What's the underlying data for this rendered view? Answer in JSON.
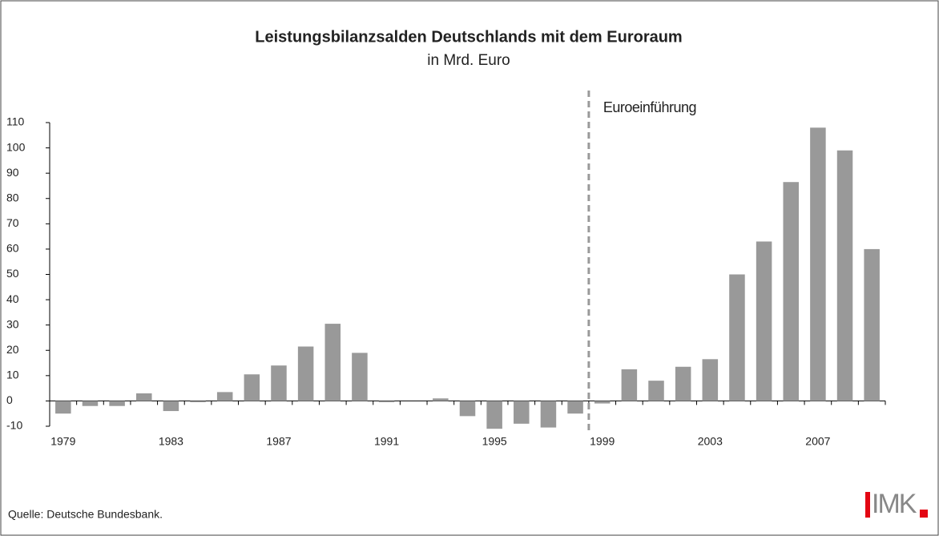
{
  "chart_data": {
    "type": "bar",
    "title": "Leistungsbilanzsalden Deutschlands mit dem Euroraum",
    "subtitle": "in Mrd. Euro",
    "annotation": "Euroeinführung",
    "source": "Quelle: Deutsche Bundesbank.",
    "logo": "IMK",
    "categories": [
      "1979",
      null,
      null,
      null,
      "1983",
      null,
      null,
      null,
      "1987",
      null,
      null,
      null,
      "1991",
      null,
      null,
      null,
      "1995",
      null,
      null,
      null,
      "1999",
      null,
      null,
      null,
      "2003",
      null,
      null,
      null,
      "2007",
      null,
      null
    ],
    "values": [
      -5,
      -2,
      -2,
      3,
      -4,
      -0.5,
      3.5,
      10.5,
      14,
      21.5,
      30.5,
      19,
      -0.5,
      0,
      1,
      -6,
      -11,
      -9,
      -10.5,
      -5,
      -1,
      12.5,
      8,
      13.5,
      16.5,
      50,
      63,
      86.5,
      108,
      99,
      60
    ],
    "color": "#999999",
    "ylim": [
      -10,
      110
    ],
    "yticks": [
      -10,
      0,
      10,
      20,
      30,
      40,
      50,
      60,
      70,
      80,
      90,
      100,
      110
    ]
  }
}
